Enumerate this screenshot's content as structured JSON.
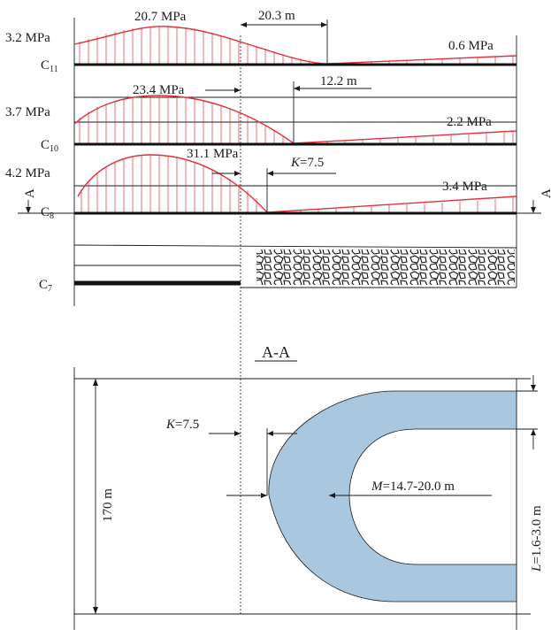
{
  "profile": {
    "seam_c11": {
      "name": "C",
      "sub": "11",
      "left_value": "3.2 MPa",
      "peak_value": "20.7 MPa",
      "right_value": "0.6 MPa",
      "dim": "20.3 m"
    },
    "seam_c10": {
      "name": "C",
      "sub": "10",
      "left_value": "3.7 MPa",
      "peak_value": "23.4 MPa",
      "right_value": "2.2 MPa",
      "dim": "12.2 m"
    },
    "seam_c8": {
      "name": "C",
      "sub": "8",
      "left_value": "4.2 MPa",
      "peak_value": "31.1 MPa",
      "right_value": "3.4 MPa",
      "k_prefix": "K",
      "k_value": "=7.5"
    },
    "seam_c7": {
      "name": "C",
      "sub": "7"
    },
    "section_mark_left": "A",
    "section_mark_right": "A"
  },
  "plan": {
    "title": "A-A",
    "width_dim": "170 m",
    "k_prefix": "K",
    "k_value": "=7.5",
    "m_prefix": "M",
    "m_value": "=14.7-20.0 m",
    "l_prefix": "L",
    "l_value": "=1.6-3.0 m",
    "pillar_color": "#a9c8df"
  },
  "colors": {
    "stress_curve": "#e0303a",
    "lines": "#1a1a1a"
  }
}
